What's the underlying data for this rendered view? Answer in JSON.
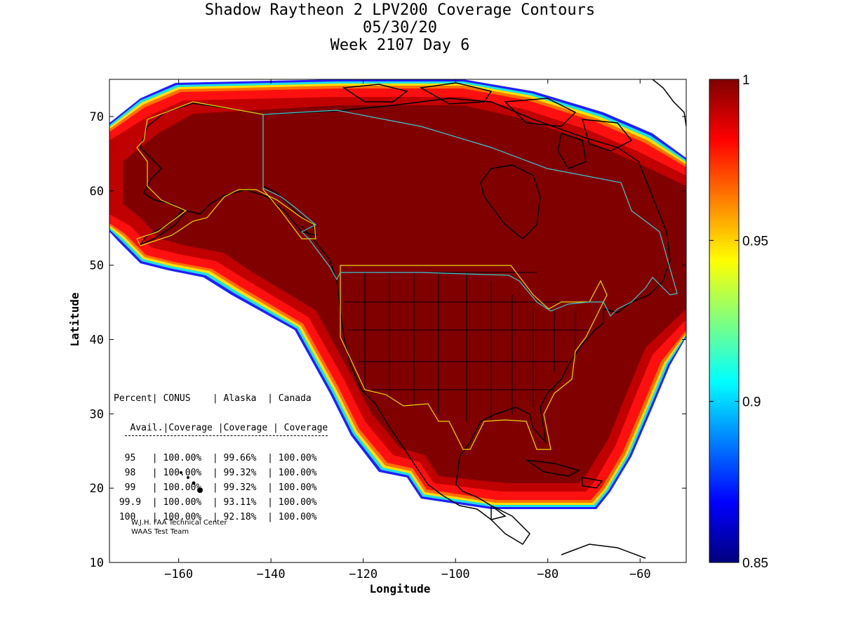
{
  "chart_data": {
    "type": "heatmap",
    "title": "Shadow Raytheon 2 LPV200 Coverage Contours",
    "subtitle_date": "05/30/20",
    "subtitle_week": "Week 2107 Day 6",
    "xlabel": "Longitude",
    "ylabel": "Latitude",
    "xlim": [
      -175,
      -50
    ],
    "ylim": [
      10,
      75
    ],
    "x_ticks": [
      -160,
      -140,
      -120,
      -100,
      -80,
      -60
    ],
    "y_ticks": [
      10,
      20,
      30,
      40,
      50,
      60,
      70
    ],
    "colorbar": {
      "min": 0.85,
      "max": 1,
      "ticks": [
        "1",
        "0.95",
        "0.9",
        "0.85"
      ],
      "tick_values": [
        1,
        0.95,
        0.9,
        0.85
      ],
      "colormap": "jet"
    },
    "colors": {
      "coverage_full": "#800000",
      "conus_border": "#e8d800",
      "canada_border": "#40c8d0",
      "map_lines": "#000000"
    },
    "table": {
      "header1": [
        "Percent",
        "CONUS",
        "Alaska",
        "Canada"
      ],
      "header2": [
        "Avail.",
        "Coverage",
        "Coverage",
        "Coverage"
      ],
      "rows": [
        [
          "95",
          "100.00%",
          "99.66%",
          "100.00%"
        ],
        [
          "98",
          "100.00%",
          "99.32%",
          "100.00%"
        ],
        [
          "99",
          "100.00%",
          "99.32%",
          "100.00%"
        ],
        [
          "99.9",
          "100.00%",
          "93.11%",
          "100.00%"
        ],
        [
          "100",
          "100.00%",
          "92.18%",
          "100.00%"
        ]
      ]
    },
    "credit_line1": "W.J.H. FAA Technical Center",
    "credit_line2": "WAAS Test Team"
  }
}
